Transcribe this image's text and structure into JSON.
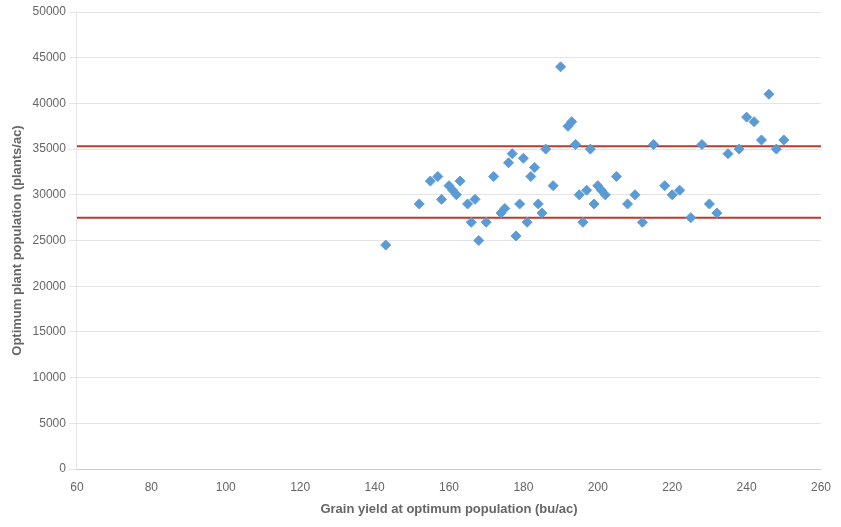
{
  "chart_data": {
    "type": "scatter",
    "xlabel": "Grain yield at optimum population (bu/ac)",
    "ylabel": "Optimum plant population (plants/ac)",
    "x": [
      143,
      152,
      155,
      157,
      158,
      160,
      161,
      162,
      163,
      165,
      166,
      167,
      168,
      170,
      172,
      174,
      175,
      176,
      177,
      178,
      179,
      180,
      181,
      182,
      183,
      184,
      185,
      186,
      188,
      190,
      192,
      193,
      194,
      195,
      196,
      197,
      198,
      199,
      200,
      201,
      202,
      205,
      208,
      210,
      212,
      215,
      218,
      220,
      222,
      225,
      228,
      230,
      232,
      235,
      238,
      240,
      242,
      244,
      246,
      248,
      250
    ],
    "values": [
      24500,
      29000,
      31500,
      32000,
      29500,
      31000,
      30500,
      30000,
      31500,
      29000,
      27000,
      29500,
      25000,
      27000,
      32000,
      28000,
      28500,
      33500,
      34500,
      25500,
      29000,
      34000,
      27000,
      32000,
      33000,
      29000,
      28000,
      35000,
      31000,
      44000,
      37500,
      38000,
      35500,
      30000,
      27000,
      30500,
      35000,
      29000,
      31000,
      30500,
      30000,
      32000,
      29000,
      30000,
      27000,
      35500,
      31000,
      30000,
      30500,
      27500,
      35500,
      29000,
      28000,
      34500,
      35000,
      38500,
      38000,
      36000,
      41000,
      35000,
      36000
    ],
    "color": "#5b9bd5",
    "marker": "diamond",
    "hlines": [
      {
        "value": 35300,
        "color": "#c0392b"
      },
      {
        "value": 27500,
        "color": "#c0392b"
      }
    ],
    "xlim": [
      60,
      260
    ],
    "ylim": [
      0,
      50000
    ],
    "xticks": [
      60,
      80,
      100,
      120,
      140,
      160,
      180,
      200,
      220,
      240,
      260
    ],
    "yticks": [
      0,
      5000,
      10000,
      15000,
      20000,
      25000,
      30000,
      35000,
      40000,
      45000,
      50000
    ],
    "grid": "y"
  }
}
